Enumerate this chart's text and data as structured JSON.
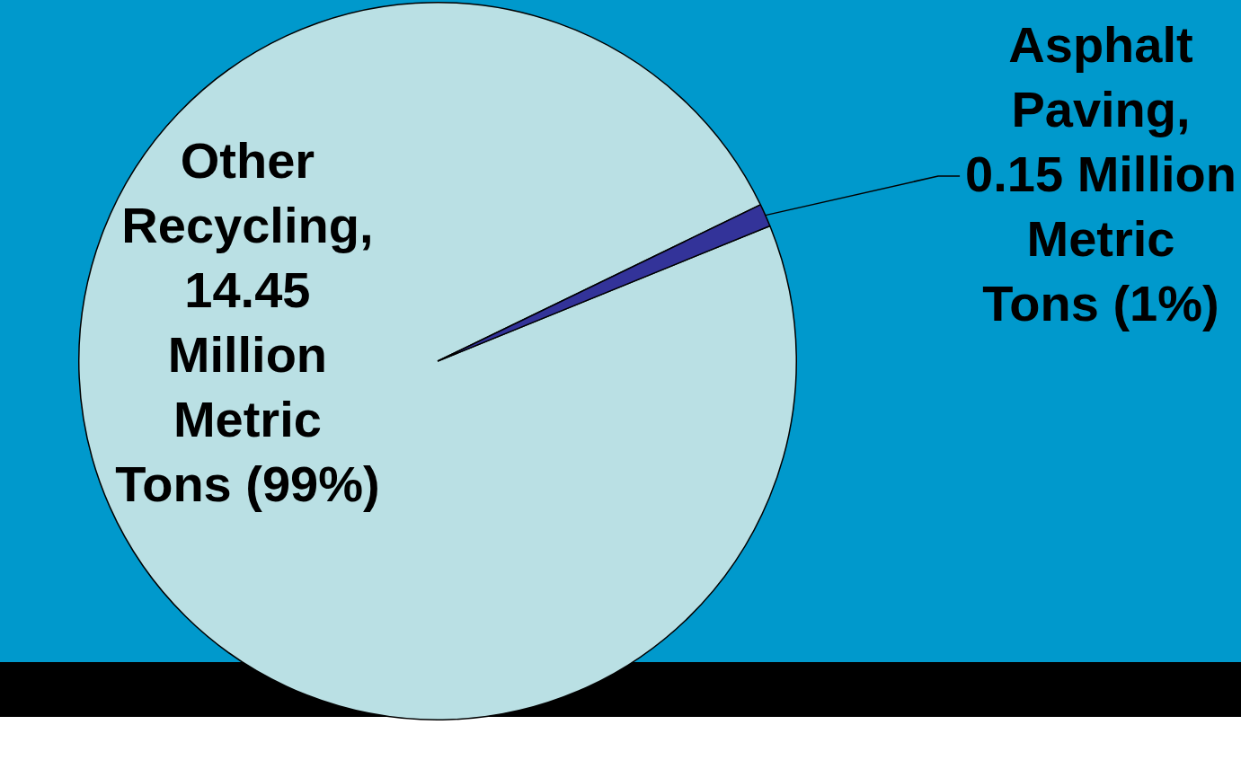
{
  "chart_data": {
    "type": "pie",
    "categories": [
      "Other Recycling, 14.45 Million Metric Tons (99%)",
      "Asphalt Paving, 0.15 Million Metric Tons (1%)"
    ],
    "values": [
      14.45,
      0.15
    ],
    "colors": [
      "#bae0e4",
      "#333399"
    ],
    "legend": false
  }
}
